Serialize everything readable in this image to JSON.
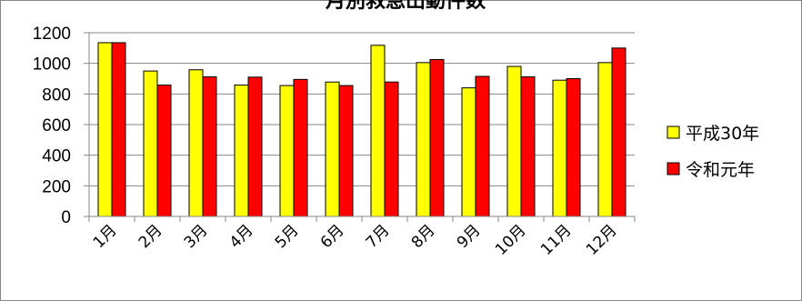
{
  "chart_data": {
    "type": "bar",
    "title": "月別救急出動件数",
    "categories": [
      "1月",
      "2月",
      "3月",
      "4月",
      "5月",
      "6月",
      "7月",
      "8月",
      "9月",
      "10月",
      "11月",
      "12月"
    ],
    "series": [
      {
        "name": "平成30年",
        "color": "#ffff00",
        "values": [
          1135,
          950,
          958,
          858,
          855,
          878,
          1118,
          1005,
          840,
          980,
          890,
          1005
        ]
      },
      {
        "name": "令和元年",
        "color": "#ff0000",
        "values": [
          1135,
          858,
          912,
          910,
          895,
          855,
          878,
          1025,
          915,
          912,
          900,
          1100
        ]
      }
    ],
    "y_ticks": [
      "0",
      "200",
      "400",
      "600",
      "800",
      "1000",
      "1200"
    ],
    "ylim": [
      0,
      1200
    ],
    "legend_position": "right",
    "grid": true
  }
}
